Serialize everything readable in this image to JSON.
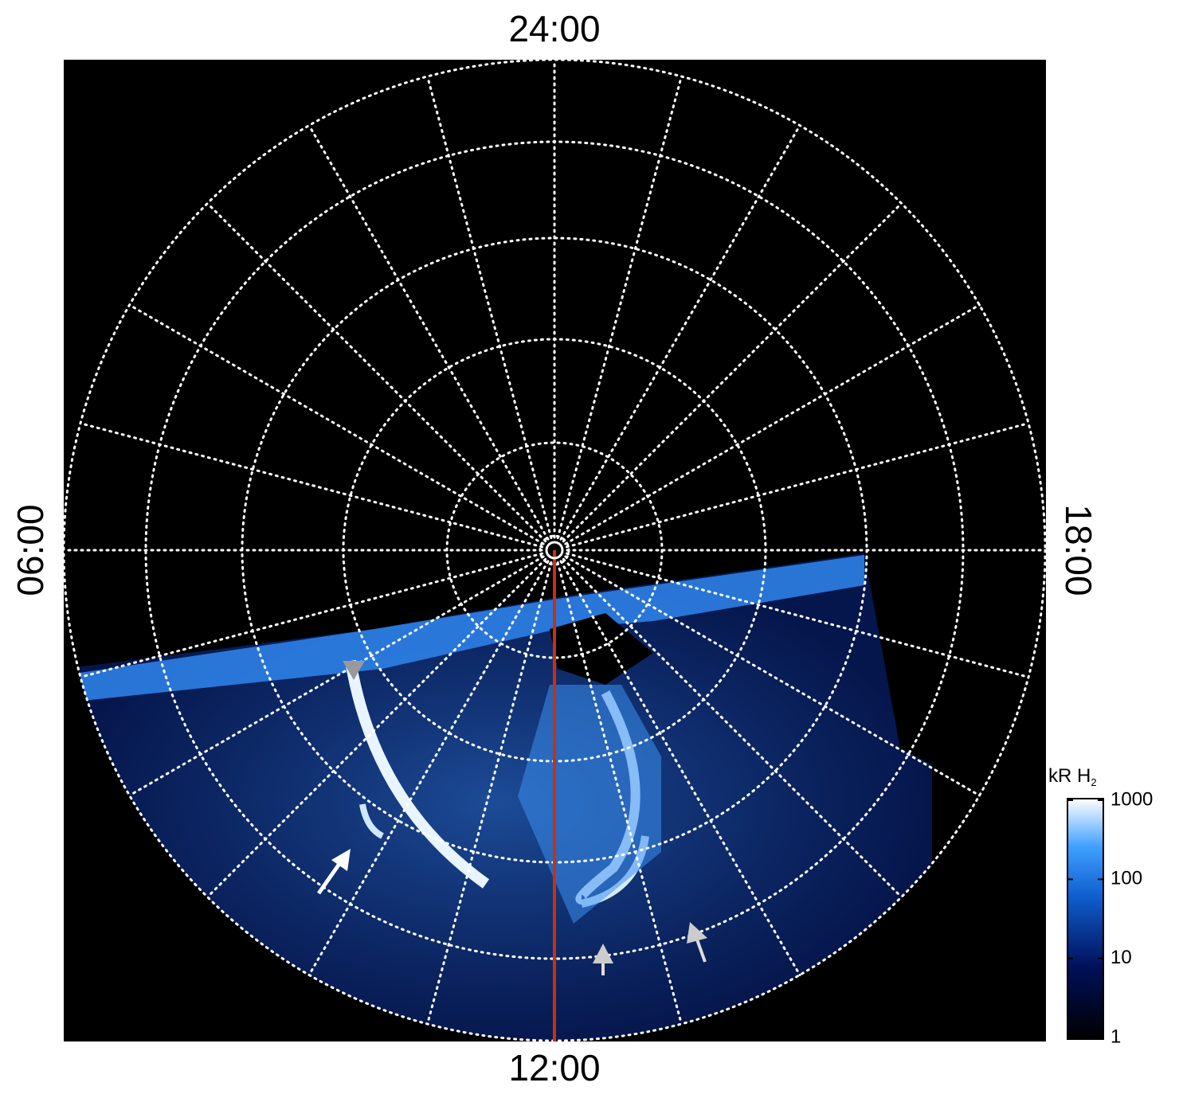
{
  "labels": {
    "top": "24:00",
    "bottom": "12:00",
    "left": "06:00",
    "right": "18:00"
  },
  "colorbar": {
    "title": "kR H",
    "title_subscript": "2",
    "scale": "log",
    "lim": [
      1,
      1000
    ],
    "ticks": [
      1,
      10,
      100,
      1000
    ]
  }
}
